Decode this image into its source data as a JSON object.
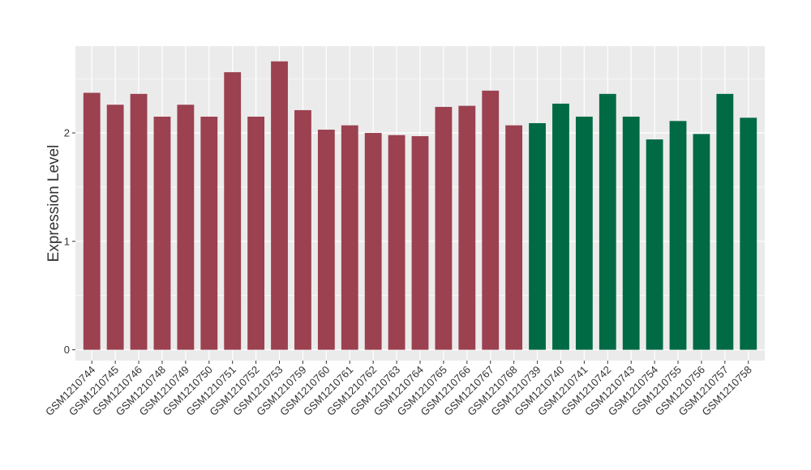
{
  "chart_data": {
    "type": "bar",
    "xlabel": "",
    "ylabel": "Expression Level",
    "ylim": [
      -0.1,
      2.8
    ],
    "yticks": [
      0,
      1,
      2
    ],
    "ytick_labels": [
      "0",
      "1",
      "2"
    ],
    "grid": true,
    "categories": [
      "GSM1210744",
      "GSM1210745",
      "GSM1210746",
      "GSM1210748",
      "GSM1210749",
      "GSM1210750",
      "GSM1210751",
      "GSM1210752",
      "GSM1210753",
      "GSM1210759",
      "GSM1210760",
      "GSM1210761",
      "GSM1210762",
      "GSM1210763",
      "GSM1210764",
      "GSM1210765",
      "GSM1210766",
      "GSM1210767",
      "GSM1210768",
      "GSM1210739",
      "GSM1210740",
      "GSM1210741",
      "GSM1210742",
      "GSM1210743",
      "GSM1210754",
      "GSM1210755",
      "GSM1210756",
      "GSM1210757",
      "GSM1210758"
    ],
    "values": [
      2.37,
      2.26,
      2.36,
      2.15,
      2.26,
      2.15,
      2.56,
      2.15,
      2.66,
      2.21,
      2.03,
      2.07,
      2.0,
      1.98,
      1.97,
      2.24,
      2.25,
      2.39,
      2.07,
      2.09,
      2.27,
      2.15,
      2.36,
      2.15,
      1.94,
      2.11,
      1.99,
      2.36,
      2.14
    ],
    "groups": [
      0,
      0,
      0,
      0,
      0,
      0,
      0,
      0,
      0,
      0,
      0,
      0,
      0,
      0,
      0,
      0,
      0,
      0,
      0,
      1,
      1,
      1,
      1,
      1,
      1,
      1,
      1,
      1,
      1
    ],
    "group_colors": [
      "#9b4150",
      "#006a45"
    ],
    "panel_background": "#ebebeb",
    "grid_color": "#ffffff"
  }
}
